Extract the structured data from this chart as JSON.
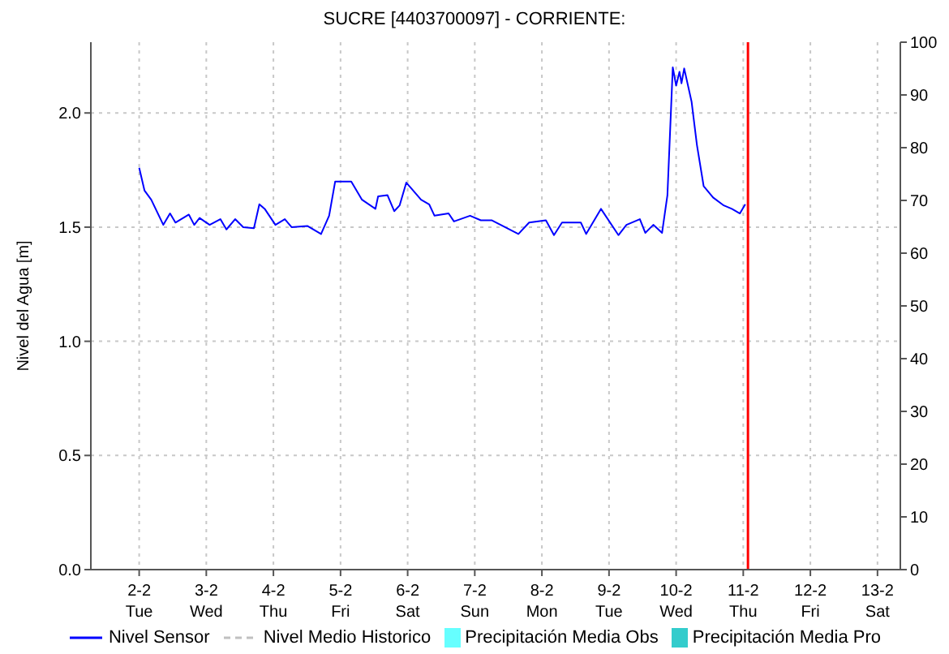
{
  "chart_data": {
    "type": "line",
    "title": "SUCRE [4403700097] - CORRIENTE:",
    "ylabel": "Nivel del Agua [m]",
    "xlim": [
      "--02-01T06:43",
      "--02-13T08:10"
    ],
    "xticks": [
      {
        "value": "--02-02",
        "label": "2-2\nTue"
      },
      {
        "value": "--02-03",
        "label": "3-2\nWed"
      },
      {
        "value": "--02-04",
        "label": "4-2\nThu"
      },
      {
        "value": "--02-05",
        "label": "5-2\nFri"
      },
      {
        "value": "--02-06",
        "label": "6-2\nSat"
      },
      {
        "value": "--02-07",
        "label": "7-2\nSun"
      },
      {
        "value": "--02-08",
        "label": "8-2\nMon"
      },
      {
        "value": "--02-09",
        "label": "9-2\nTue"
      },
      {
        "value": "--02-10",
        "label": "10-2\nWed"
      },
      {
        "value": "--02-11",
        "label": "11-2\nThu"
      },
      {
        "value": "--02-12",
        "label": "12-2\nFri"
      },
      {
        "value": "--02-13",
        "label": "13-2\nSat"
      }
    ],
    "ylim": [
      0,
      2.31
    ],
    "yticks": [
      {
        "value": 0,
        "label": "0.0"
      },
      {
        "value": 0.5,
        "label": "0.5"
      },
      {
        "value": 1,
        "label": "1.0"
      },
      {
        "value": 1.5,
        "label": "1.5"
      },
      {
        "value": 2,
        "label": "2.0"
      }
    ],
    "y2lim": [
      0,
      100
    ],
    "y2ticks": [
      0,
      10,
      20,
      30,
      40,
      50,
      60,
      70,
      80,
      90,
      100
    ],
    "grid": true,
    "legend": "bottom",
    "marker": "none",
    "ref_lines": [
      {
        "axis": "x",
        "value": "--02-11T01:41",
        "color": "#ff0000"
      }
    ],
    "series": [
      {
        "name": "Nivel Sensor",
        "color": "#0000ff",
        "line_style": "solid",
        "x": [
          "--02-02T00:00",
          "--02-02T01:55",
          "--02-02T04:19",
          "--02-02T08:38",
          "--02-02T11:02",
          "--02-02T12:58",
          "--02-02T17:46",
          "--02-02T19:41",
          "--02-02T21:36",
          "--02-03T01:12",
          "--02-03T05:02",
          "--02-03T07:12",
          "--02-03T10:19",
          "--02-03T13:12",
          "--02-03T17:02",
          "--02-03T18:58",
          "--02-03T20:53",
          "--02-04T00:43",
          "--02-04T04:05",
          "--02-04T06:29",
          "--02-04T12:14",
          "--02-04T17:02",
          "--02-04T19:55",
          "--02-04T22:05",
          "--02-05T03:50",
          "--02-05T07:41",
          "--02-05T12:29",
          "--02-05T13:26",
          "--02-05T16:48",
          "--02-05T19:12",
          "--02-05T21:07",
          "--02-05T23:31",
          "--02-06T04:48",
          "--02-06T07:41",
          "--02-06T09:36",
          "--02-06T14:38",
          "--02-06T16:34",
          "--02-06T22:19",
          "--02-07T02:10",
          "--02-07T06:00",
          "--02-07T15:36",
          "--02-07T19:26",
          "--02-08T01:26",
          "--02-08T04:19",
          "--02-08T07:12",
          "--02-08T13:55",
          "--02-08T15:50",
          "--02-08T21:07",
          "--02-09T03:22",
          "--02-09T06:14",
          "--02-09T11:02",
          "--02-09T12:58",
          "--02-09T15:50",
          "--02-09T18:58",
          "--02-09T20:53",
          "--02-09T22:48",
          "--02-10T00:00",
          "--02-10T01:12",
          "--02-10T01:55",
          "--02-10T02:53",
          "--02-10T05:31",
          "--02-10T07:26",
          "--02-10T09:50",
          "--02-10T13:12",
          "--02-10T17:02",
          "--02-10T19:55",
          "--02-10T22:48",
          "--02-11T00:43"
        ],
        "values": [
          1.76,
          1.66,
          1.62,
          1.51,
          1.56,
          1.52,
          1.555,
          1.51,
          1.54,
          1.51,
          1.535,
          1.49,
          1.535,
          1.5,
          1.495,
          1.6,
          1.58,
          1.51,
          1.535,
          1.5,
          1.505,
          1.47,
          1.55,
          1.7,
          1.7,
          1.62,
          1.58,
          1.635,
          1.64,
          1.57,
          1.595,
          1.695,
          1.62,
          1.6,
          1.55,
          1.56,
          1.525,
          1.55,
          1.53,
          1.53,
          1.47,
          1.52,
          1.53,
          1.465,
          1.52,
          1.52,
          1.47,
          1.58,
          1.465,
          1.51,
          1.535,
          1.475,
          1.51,
          1.475,
          1.64,
          2.2,
          2.12,
          2.18,
          2.13,
          2.195,
          2.05,
          1.86,
          1.68,
          1.63,
          1.595,
          1.58,
          1.56,
          1.6
        ]
      },
      {
        "name": "Nivel Medio Historico",
        "color": "#c0c0c0",
        "line_style": "dashed"
      },
      {
        "name": "Precipitación Media Obs",
        "type": "bar",
        "color": "#66ffff"
      },
      {
        "name": "Precipitación Media Pro",
        "type": "bar",
        "color": "#33cccc"
      }
    ]
  }
}
